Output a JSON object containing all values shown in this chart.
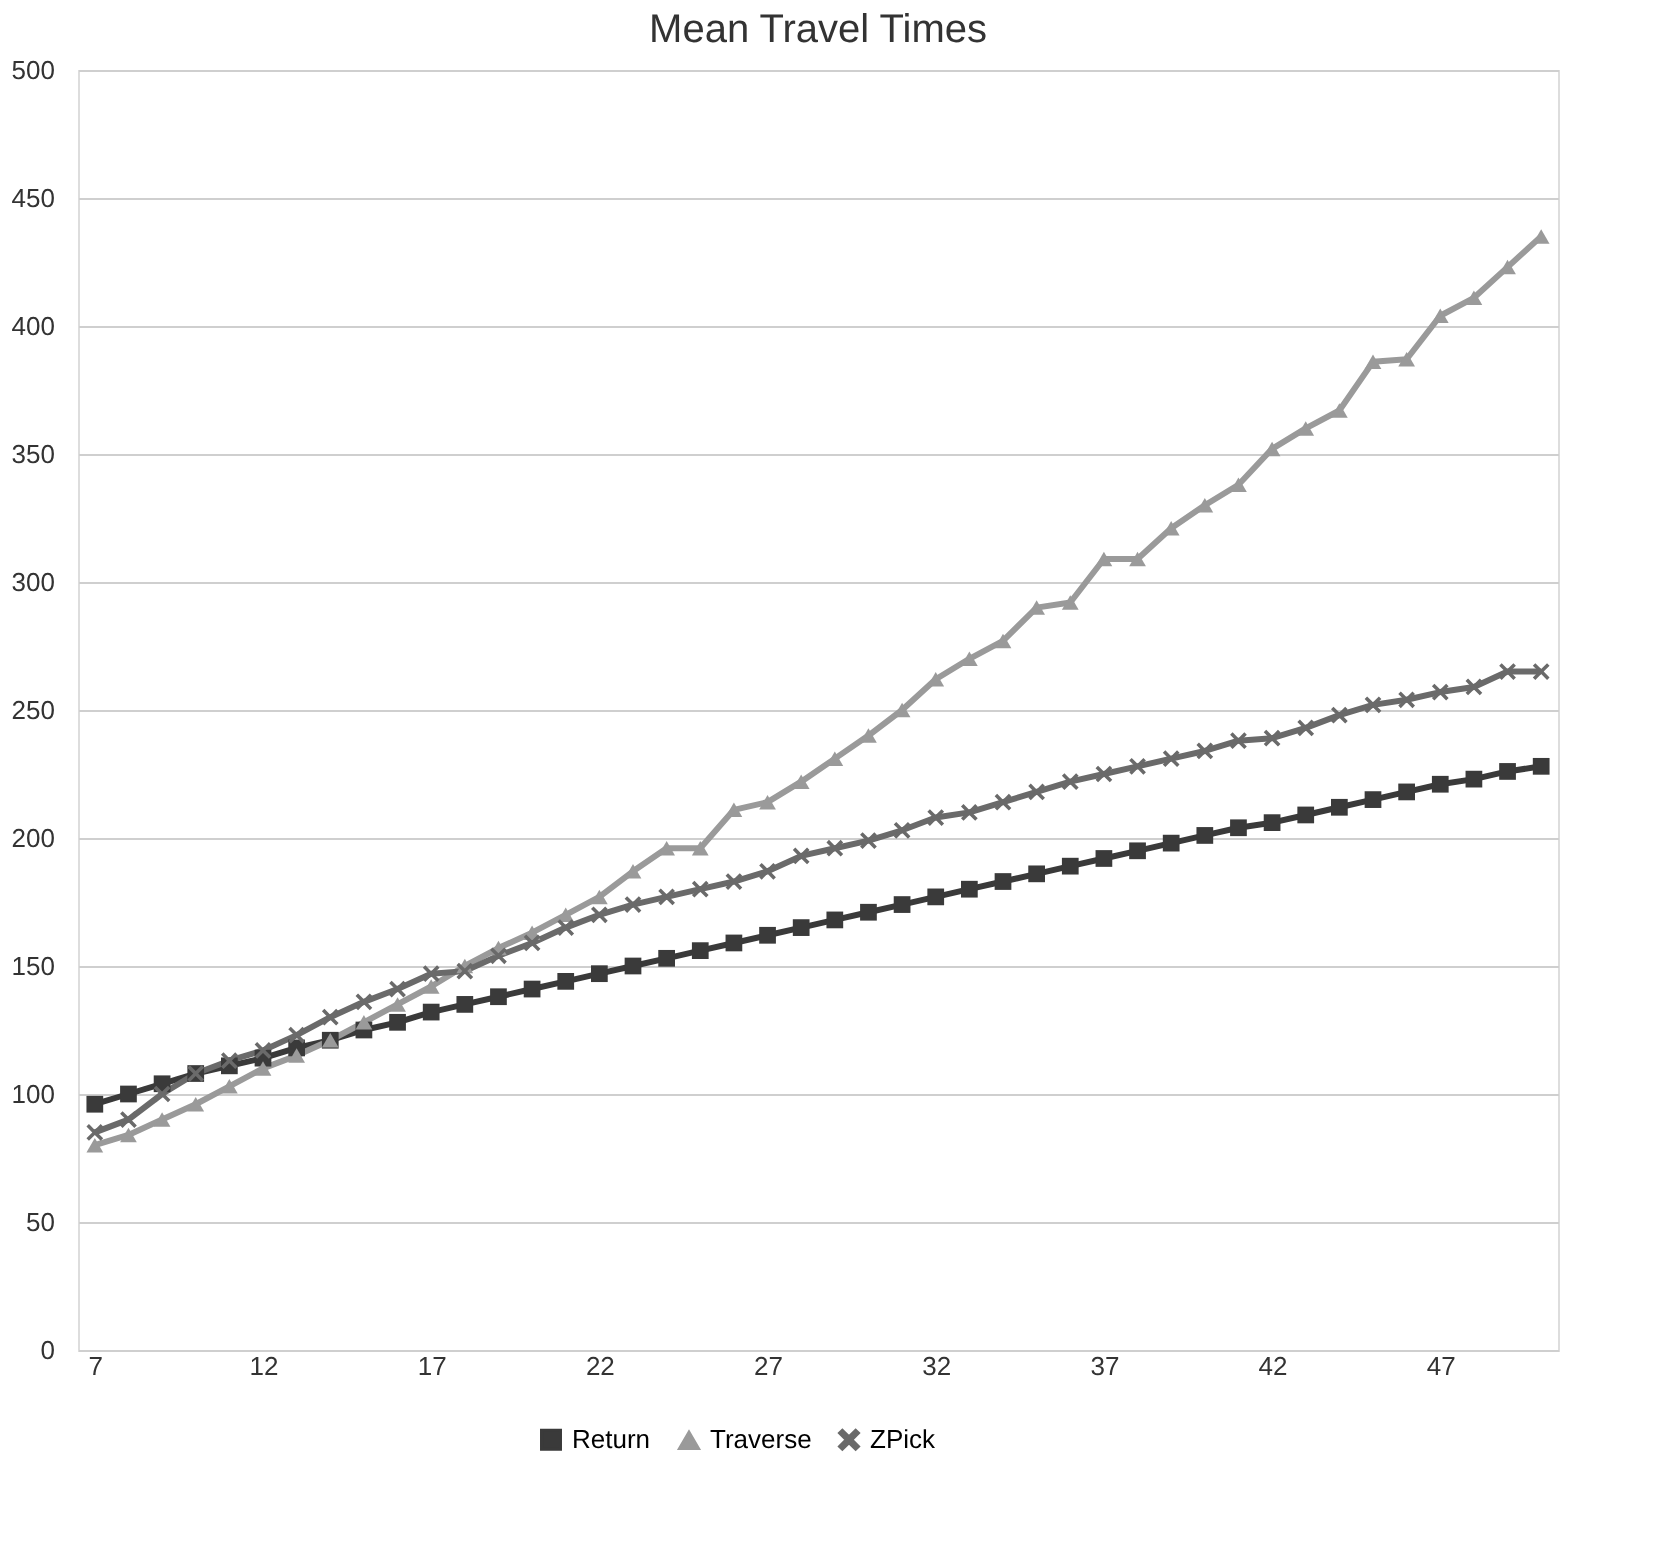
{
  "chart_data": {
    "type": "line",
    "title": "Mean Travel Times",
    "categories": [
      "7",
      null,
      null,
      null,
      null,
      "12",
      null,
      null,
      null,
      null,
      "17",
      null,
      null,
      null,
      null,
      "22",
      null,
      null,
      null,
      null,
      "27",
      null,
      null,
      null,
      null,
      "32",
      null,
      null,
      null,
      null,
      "37",
      null,
      null,
      null,
      null,
      "42",
      null,
      null,
      null,
      null,
      "47",
      null,
      null,
      null
    ],
    "series": [
      {
        "name": "Return",
        "color": "#3a3a3a",
        "marker": "square",
        "values": [
          96,
          100,
          104,
          108,
          111,
          114,
          118,
          121,
          125,
          128,
          132,
          135,
          138,
          141,
          144,
          147,
          150,
          153,
          156,
          159,
          162,
          165,
          168,
          171,
          174,
          177,
          180,
          183,
          186,
          189,
          192,
          195,
          198,
          201,
          204,
          206,
          209,
          212,
          215,
          218,
          221,
          223,
          226,
          228
        ]
      },
      {
        "name": "Traverse",
        "color": "#9a9a9a",
        "marker": "triangle",
        "values": [
          80,
          84,
          90,
          96,
          103,
          110,
          115,
          121,
          128,
          135,
          142,
          150,
          157,
          163,
          170,
          177,
          187,
          196,
          196,
          211,
          214,
          222,
          231,
          240,
          250,
          262,
          270,
          277,
          290,
          292,
          309,
          309,
          321,
          330,
          338,
          352,
          360,
          367,
          386,
          387,
          404,
          411,
          423,
          435
        ]
      },
      {
        "name": "ZPick",
        "color": "#6a6a6a",
        "marker": "cross",
        "values": [
          85,
          90,
          100,
          108,
          113,
          117,
          123,
          130,
          136,
          141,
          147,
          148,
          154,
          159,
          165,
          170,
          174,
          177,
          180,
          183,
          187,
          193,
          196,
          199,
          203,
          208,
          210,
          214,
          218,
          222,
          225,
          228,
          231,
          234,
          238,
          239,
          243,
          248,
          252,
          254,
          257,
          259,
          265,
          265
        ]
      }
    ],
    "ylim": [
      0,
      500
    ],
    "yticks": [
      0,
      50,
      100,
      150,
      200,
      250,
      300,
      350,
      400,
      450,
      500
    ],
    "grid": "y",
    "legend": "bottom",
    "line_style": "solid"
  }
}
